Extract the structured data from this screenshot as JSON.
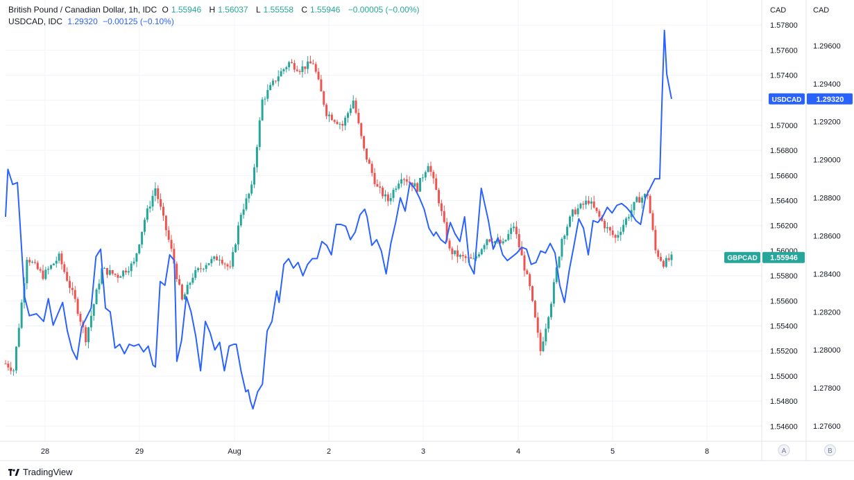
{
  "legend": {
    "main_title": "British Pound / Canadian Dollar, 1h, IDC",
    "o_label": "O",
    "o_value": "1.55946",
    "h_label": "H",
    "h_value": "1.56037",
    "l_label": "L",
    "l_value": "1.55558",
    "c_label": "C",
    "c_value": "1.55946",
    "change": "−0.00005 (−0.00%)",
    "overlay_title": "USDCAD, IDC",
    "overlay_value": "1.29320",
    "overlay_change": "−0.00125 (−0.10%)"
  },
  "footer": {
    "brand": "TradingView",
    "logo_icon": "tradingview-logo-icon"
  },
  "chart_data": {
    "type": "line",
    "x_ticks": [
      "28",
      "29",
      "Aug",
      "2",
      "3",
      "4",
      "5",
      "8"
    ],
    "axis_a": {
      "unit": "CAD",
      "button": "A",
      "range": [
        1.5448,
        1.58
      ],
      "ticks": [
        "1.57800",
        "1.57600",
        "1.57400",
        "1.57200",
        "1.57000",
        "1.56800",
        "1.56600",
        "1.56400",
        "1.56200",
        "1.56000",
        "1.55800",
        "1.55600",
        "1.55400",
        "1.55200",
        "1.55000",
        "1.54800",
        "1.54600"
      ]
    },
    "axis_b": {
      "unit": "CAD",
      "button": "B",
      "range": [
        1.2752,
        1.2984
      ],
      "ticks": [
        "1.29600",
        "1.29400",
        "1.29200",
        "1.29000",
        "1.28800",
        "1.28600",
        "1.28400",
        "1.28200",
        "1.28000",
        "1.27800",
        "1.27600"
      ]
    },
    "colors": {
      "up": "#26a69a",
      "down": "#ef5350",
      "overlay": "#2962ff",
      "grid": "#f0f3fa"
    },
    "series": [
      {
        "name": "GBPCAD",
        "kind": "candlestick",
        "axis": "a",
        "last_label": "GBPCAD",
        "last_value": "1.55946",
        "anchors": [
          [
            0,
            1.551
          ],
          [
            3,
            1.5505
          ],
          [
            5,
            1.554
          ],
          [
            8,
            1.5595
          ],
          [
            14,
            1.558
          ],
          [
            20,
            1.5595
          ],
          [
            26,
            1.556
          ],
          [
            30,
            1.553
          ],
          [
            36,
            1.5585
          ],
          [
            42,
            1.558
          ],
          [
            48,
            1.559
          ],
          [
            52,
            1.5625
          ],
          [
            56,
            1.565
          ],
          [
            62,
            1.56
          ],
          [
            66,
            1.556
          ],
          [
            70,
            1.558
          ],
          [
            75,
            1.559
          ],
          [
            80,
            1.5595
          ],
          [
            84,
            1.5585
          ],
          [
            88,
            1.563
          ],
          [
            92,
            1.565
          ],
          [
            96,
            1.572
          ],
          [
            102,
            1.574
          ],
          [
            106,
            1.575
          ],
          [
            110,
            1.5745
          ],
          [
            115,
            1.575
          ],
          [
            120,
            1.571
          ],
          [
            126,
            1.57
          ],
          [
            130,
            1.572
          ],
          [
            134,
            1.568
          ],
          [
            139,
            1.565
          ],
          [
            143,
            1.564
          ],
          [
            148,
            1.566
          ],
          [
            154,
            1.565
          ],
          [
            158,
            1.567
          ],
          [
            162,
            1.564
          ],
          [
            166,
            1.56
          ],
          [
            170,
            1.5595
          ],
          [
            175,
            1.5592
          ],
          [
            180,
            1.561
          ],
          [
            186,
            1.5605
          ],
          [
            190,
            1.562
          ],
          [
            196,
            1.557
          ],
          [
            200,
            1.552
          ],
          [
            204,
            1.556
          ],
          [
            208,
            1.561
          ],
          [
            212,
            1.563
          ],
          [
            218,
            1.564
          ],
          [
            224,
            1.562
          ],
          [
            228,
            1.561
          ],
          [
            232,
            1.5625
          ],
          [
            236,
            1.564
          ],
          [
            240,
            1.5645
          ],
          [
            243,
            1.56
          ],
          [
            246,
            1.559
          ],
          [
            249,
            1.5594
          ]
        ]
      },
      {
        "name": "USDCAD",
        "kind": "line",
        "axis": "b",
        "last_label": "USDCAD",
        "last_value": "1.29320",
        "values": [
          [
            0,
            1.287
          ],
          [
            1,
            1.2895
          ],
          [
            3,
            1.2887
          ],
          [
            5,
            1.2888
          ],
          [
            6,
            1.2868
          ],
          [
            8,
            1.2828
          ],
          [
            10,
            1.2818
          ],
          [
            13,
            1.2819
          ],
          [
            16,
            1.2815
          ],
          [
            18,
            1.2827
          ],
          [
            20,
            1.2813
          ],
          [
            22,
            1.2819
          ],
          [
            24,
            1.2825
          ],
          [
            26,
            1.281
          ],
          [
            28,
            1.28
          ],
          [
            30,
            1.2795
          ],
          [
            32,
            1.2812
          ],
          [
            34,
            1.2817
          ],
          [
            36,
            1.2822
          ],
          [
            38,
            1.2849
          ],
          [
            40,
            1.2853
          ],
          [
            42,
            1.2822
          ],
          [
            44,
            1.282
          ],
          [
            46,
            1.2801
          ],
          [
            48,
            1.2803
          ],
          [
            50,
            1.2798
          ],
          [
            52,
            1.2803
          ],
          [
            54,
            1.2802
          ],
          [
            56,
            1.2803
          ],
          [
            58,
            1.2799
          ],
          [
            60,
            1.2802
          ],
          [
            62,
            1.2792
          ],
          [
            63,
            1.2791
          ],
          [
            65,
            1.2836
          ],
          [
            67,
            1.2834
          ],
          [
            69,
            1.285
          ],
          [
            71,
            1.2847
          ],
          [
            72,
            1.2794
          ],
          [
            74,
            1.2805
          ],
          [
            76,
            1.2828
          ],
          [
            78,
            1.282
          ],
          [
            80,
            1.2807
          ],
          [
            82,
            1.2789
          ],
          [
            84,
            1.2815
          ],
          [
            86,
            1.2809
          ],
          [
            88,
            1.28
          ],
          [
            90,
            1.2804
          ],
          [
            92,
            1.2789
          ],
          [
            94,
            1.2802
          ],
          [
            96,
            1.2803
          ],
          [
            97,
            1.2803
          ],
          [
            99,
            1.2789
          ],
          [
            101,
            1.2778
          ],
          [
            102,
            1.2779
          ],
          [
            103,
            1.2773
          ],
          [
            104,
            1.2769
          ],
          [
            106,
            1.2778
          ],
          [
            108,
            1.2782
          ],
          [
            110,
            1.281
          ],
          [
            112,
            1.2815
          ],
          [
            114,
            1.2831
          ],
          [
            115,
            1.2825
          ],
          [
            117,
            1.2845
          ],
          [
            119,
            1.2848
          ],
          [
            121,
            1.2843
          ],
          [
            123,
            1.2846
          ],
          [
            125,
            1.2839
          ],
          [
            127,
            1.2845
          ],
          [
            129,
            1.2848
          ],
          [
            131,
            1.2848
          ],
          [
            133,
            1.2857
          ],
          [
            135,
            1.2855
          ],
          [
            137,
            1.285
          ],
          [
            139,
            1.2866
          ],
          [
            141,
            1.2866
          ],
          [
            143,
            1.2865
          ],
          [
            145,
            1.2858
          ],
          [
            147,
            1.2862
          ],
          [
            149,
            1.2871
          ],
          [
            151,
            1.2874
          ],
          [
            152,
            1.287
          ],
          [
            154,
            1.2855
          ],
          [
            156,
            1.2858
          ],
          [
            158,
            1.2852
          ],
          [
            160,
            1.284
          ],
          [
            162,
            1.2856
          ],
          [
            164,
            1.2867
          ],
          [
            166,
            1.288
          ],
          [
            168,
            1.2873
          ],
          [
            170,
            1.2888
          ],
          [
            172,
            1.2885
          ],
          [
            174,
            1.288
          ],
          [
            176,
            1.2874
          ],
          [
            178,
            1.2864
          ],
          [
            180,
            1.286
          ],
          [
            181,
            1.2862
          ],
          [
            183,
            1.2858
          ],
          [
            185,
            1.2856
          ],
          [
            187,
            1.2867
          ],
          [
            189,
            1.2861
          ],
          [
            191,
            1.2857
          ],
          [
            193,
            1.287
          ],
          [
            195,
            1.2845
          ],
          [
            197,
            1.284
          ],
          [
            200,
            1.2885
          ],
          [
            203,
            1.2868
          ],
          [
            205,
            1.2853
          ],
          [
            207,
            1.2859
          ],
          [
            209,
            1.285
          ],
          [
            211,
            1.2847
          ],
          [
            213,
            1.2849
          ],
          [
            215,
            1.2851
          ],
          [
            217,
            1.2854
          ],
          [
            219,
            1.2853
          ],
          [
            221,
            1.2845
          ],
          [
            223,
            1.2846
          ],
          [
            225,
            1.2852
          ],
          [
            227,
            1.2851
          ],
          [
            229,
            1.2856
          ],
          [
            231,
            1.2851
          ],
          [
            233,
            1.2834
          ],
          [
            235,
            1.2825
          ],
          [
            237,
            1.2842
          ],
          [
            239,
            1.2855
          ],
          [
            241,
            1.2869
          ],
          [
            243,
            1.2864
          ],
          [
            245,
            1.285
          ],
          [
            247,
            1.2868
          ],
          [
            249,
            1.2867
          ],
          [
            251,
            1.287
          ],
          [
            253,
            1.2875
          ],
          [
            255,
            1.2872
          ],
          [
            257,
            1.2876
          ],
          [
            259,
            1.2877
          ],
          [
            261,
            1.2875
          ],
          [
            263,
            1.2872
          ],
          [
            265,
            1.2868
          ],
          [
            267,
            1.2866
          ],
          [
            269,
            1.288
          ],
          [
            271,
            1.2885
          ],
          [
            273,
            1.289
          ],
          [
            275,
            1.289
          ],
          [
            276,
            1.2932
          ],
          [
            277,
            1.2968
          ],
          [
            278,
            1.2945
          ],
          [
            280,
            1.2932
          ]
        ]
      }
    ]
  }
}
